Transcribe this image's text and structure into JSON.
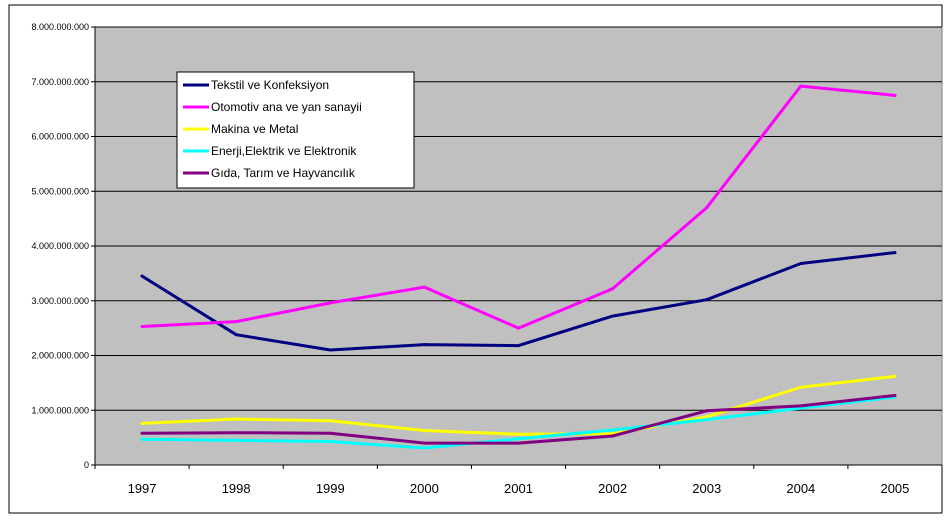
{
  "chart_data": {
    "type": "line",
    "title": "",
    "xlabel": "",
    "ylabel": "",
    "categories": [
      "1997",
      "1998",
      "1999",
      "2000",
      "2001",
      "2002",
      "2003",
      "2004",
      "2005"
    ],
    "ylim": [
      0,
      8000000000
    ],
    "yticks": [
      {
        "value": 0,
        "label": "0"
      },
      {
        "value": 1000000000,
        "label": "1.000.000.000"
      },
      {
        "value": 2000000000,
        "label": "2.000.000.000"
      },
      {
        "value": 3000000000,
        "label": "3.000.000.000"
      },
      {
        "value": 4000000000,
        "label": "4.000.000.000"
      },
      {
        "value": 5000000000,
        "label": "5.000.000.000"
      },
      {
        "value": 6000000000,
        "label": "6.000.000.000"
      },
      {
        "value": 7000000000,
        "label": "7.000.000.000"
      },
      {
        "value": 8000000000,
        "label": "8.000.000.000"
      }
    ],
    "grid": true,
    "legend_position": "top-left",
    "plot_background": "#c0c0c0",
    "series": [
      {
        "name": "Tekstil ve Konfeksiyon",
        "color": "#000080",
        "values": [
          3450000000,
          2380000000,
          2100000000,
          2200000000,
          2180000000,
          2720000000,
          3020000000,
          3680000000,
          3880000000
        ]
      },
      {
        "name": "Otomotiv ana ve yan sanayii",
        "color": "#ff00ff",
        "values": [
          2530000000,
          2620000000,
          2960000000,
          3250000000,
          2500000000,
          3220000000,
          4700000000,
          6920000000,
          6750000000
        ]
      },
      {
        "name": "Makina ve Metal",
        "color": "#ffff00",
        "values": [
          760000000,
          840000000,
          810000000,
          630000000,
          560000000,
          570000000,
          880000000,
          1420000000,
          1620000000
        ]
      },
      {
        "name": "Enerji,Elektrik ve Elektronik",
        "color": "#00ffff",
        "values": [
          470000000,
          450000000,
          430000000,
          310000000,
          480000000,
          640000000,
          830000000,
          1040000000,
          1240000000
        ]
      },
      {
        "name": "Gıda, Tarım ve Hayvancılık",
        "color": "#800080",
        "values": [
          580000000,
          590000000,
          580000000,
          400000000,
          400000000,
          530000000,
          990000000,
          1080000000,
          1270000000
        ]
      }
    ]
  }
}
